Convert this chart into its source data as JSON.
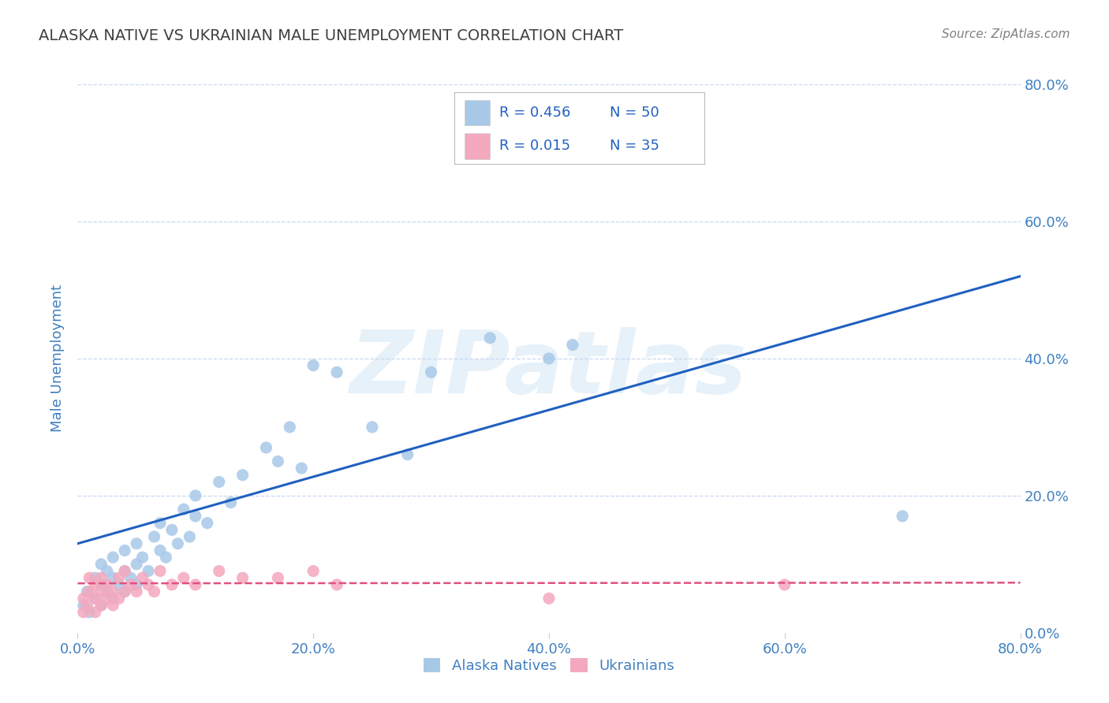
{
  "title": "ALASKA NATIVE VS UKRAINIAN MALE UNEMPLOYMENT CORRELATION CHART",
  "source": "Source: ZipAtlas.com",
  "ylabel": "Male Unemployment",
  "watermark": "ZIPatlas",
  "xlim": [
    0.0,
    0.8
  ],
  "ylim": [
    0.0,
    0.8
  ],
  "xtick_vals": [
    0.0,
    0.2,
    0.4,
    0.6,
    0.8
  ],
  "ytick_vals": [
    0.0,
    0.2,
    0.4,
    0.6,
    0.8
  ],
  "legend_labels": [
    "Alaska Natives",
    "Ukrainians"
  ],
  "legend_R": [
    0.456,
    0.015
  ],
  "legend_N": [
    50,
    35
  ],
  "alaska_color": "#a8c8e8",
  "ukrainian_color": "#f4a8be",
  "alaska_line_color": "#2060c0",
  "ukrainian_line_color": "#e05080",
  "grid_color": "#c8d8f0",
  "background_color": "#ffffff",
  "title_color": "#404040",
  "axis_label_color": "#4080c0",
  "tick_label_color": "#4080c0",
  "source_color": "#808080",
  "alaska_x": [
    0.005,
    0.008,
    0.01,
    0.015,
    0.015,
    0.02,
    0.02,
    0.02,
    0.025,
    0.025,
    0.03,
    0.03,
    0.03,
    0.035,
    0.04,
    0.04,
    0.04,
    0.045,
    0.05,
    0.05,
    0.05,
    0.055,
    0.06,
    0.065,
    0.07,
    0.07,
    0.075,
    0.08,
    0.085,
    0.09,
    0.095,
    0.1,
    0.1,
    0.11,
    0.12,
    0.13,
    0.14,
    0.16,
    0.17,
    0.18,
    0.19,
    0.2,
    0.22,
    0.25,
    0.28,
    0.3,
    0.35,
    0.4,
    0.42,
    0.7
  ],
  "alaska_y": [
    0.04,
    0.06,
    0.03,
    0.05,
    0.08,
    0.04,
    0.07,
    0.1,
    0.06,
    0.09,
    0.05,
    0.08,
    0.11,
    0.07,
    0.06,
    0.09,
    0.12,
    0.08,
    0.1,
    0.13,
    0.07,
    0.11,
    0.09,
    0.14,
    0.12,
    0.16,
    0.11,
    0.15,
    0.13,
    0.18,
    0.14,
    0.17,
    0.2,
    0.16,
    0.22,
    0.19,
    0.23,
    0.27,
    0.25,
    0.3,
    0.24,
    0.39,
    0.38,
    0.3,
    0.26,
    0.38,
    0.43,
    0.4,
    0.42,
    0.17
  ],
  "ukrainian_x": [
    0.005,
    0.005,
    0.008,
    0.01,
    0.01,
    0.015,
    0.015,
    0.015,
    0.02,
    0.02,
    0.02,
    0.025,
    0.025,
    0.03,
    0.03,
    0.035,
    0.035,
    0.04,
    0.04,
    0.045,
    0.05,
    0.055,
    0.06,
    0.065,
    0.07,
    0.08,
    0.09,
    0.1,
    0.12,
    0.14,
    0.17,
    0.2,
    0.22,
    0.4,
    0.6
  ],
  "ukrainian_y": [
    0.03,
    0.05,
    0.04,
    0.06,
    0.08,
    0.03,
    0.05,
    0.07,
    0.04,
    0.06,
    0.08,
    0.05,
    0.07,
    0.04,
    0.06,
    0.05,
    0.08,
    0.06,
    0.09,
    0.07,
    0.06,
    0.08,
    0.07,
    0.06,
    0.09,
    0.07,
    0.08,
    0.07,
    0.09,
    0.08,
    0.08,
    0.09,
    0.07,
    0.05,
    0.07
  ],
  "alaska_line_x0": 0.0,
  "alaska_line_y0": 0.13,
  "alaska_line_x1": 0.8,
  "alaska_line_y1": 0.52,
  "ukrainian_line_x0": 0.0,
  "ukrainian_line_y0": 0.072,
  "ukrainian_line_x1": 0.8,
  "ukrainian_line_y1": 0.073
}
